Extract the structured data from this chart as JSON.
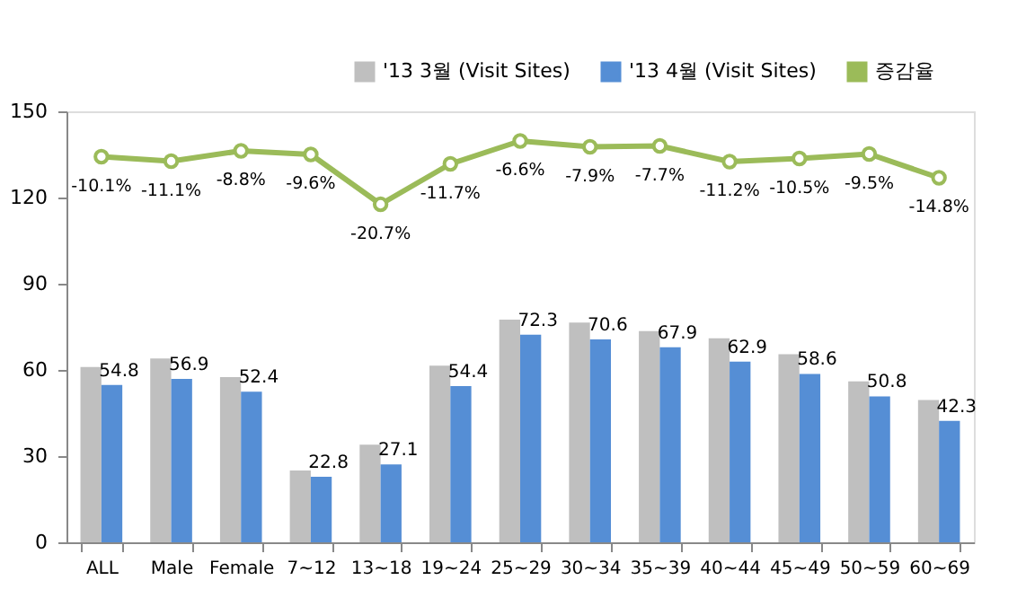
{
  "chart_data": {
    "type": "bar",
    "categories": [
      "ALL",
      "Male",
      "Female",
      "7~12",
      "13~18",
      "19~24",
      "25~29",
      "30~34",
      "35~39",
      "40~44",
      "45~49",
      "50~59",
      "60~69"
    ],
    "series": [
      {
        "name": "'13 3월 (Visit Sites)",
        "color": "#bfbfbf",
        "values": [
          61,
          64,
          57.5,
          25,
          34,
          61.5,
          77.5,
          76.5,
          73.5,
          71,
          65.5,
          56,
          49.5
        ]
      },
      {
        "name": "'13 4월 (Visit Sites)",
        "color": "#558ed5",
        "values": [
          54.8,
          56.9,
          52.4,
          22.8,
          27.1,
          54.4,
          72.3,
          70.6,
          67.9,
          62.9,
          58.6,
          50.8,
          42.3
        ],
        "value_labels": [
          "54.8",
          "56.9",
          "52.4",
          "22.8",
          "27.1",
          "54.4",
          "72.3",
          "70.6",
          "67.9",
          "62.9",
          "58.6",
          "50.8",
          "42.3"
        ]
      },
      {
        "name": "증감율",
        "color": "#9bbb59",
        "type": "line",
        "axis": "y2",
        "marker": "circle",
        "line_style": "solid",
        "values": [
          -10.1,
          -11.1,
          -8.8,
          -9.6,
          -20.7,
          -11.7,
          -6.6,
          -7.9,
          -7.7,
          -11.2,
          -10.5,
          -9.5,
          -14.8
        ],
        "value_labels": [
          "-10.1%",
          "-11.1%",
          "-8.8%",
          "-9.6%",
          "-20.7%",
          "-11.7%",
          "-6.6%",
          "-7.9%",
          "-7.7%",
          "-11.2%",
          "-10.5%",
          "-9.5%",
          "-14.8%"
        ]
      }
    ],
    "ylim": [
      0,
      150
    ],
    "yticks": [
      0,
      30,
      60,
      90,
      120,
      150
    ],
    "y2lim": [
      -96,
      0
    ],
    "grid": false,
    "legend": "top right"
  }
}
